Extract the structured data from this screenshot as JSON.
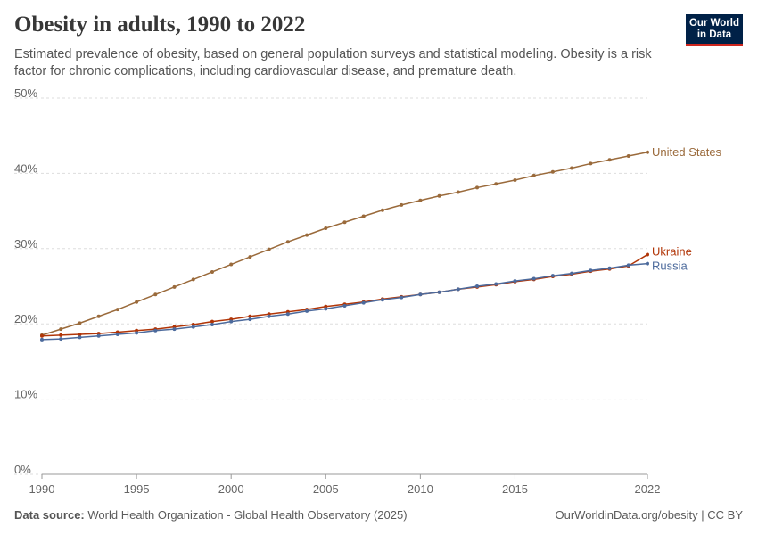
{
  "logo": {
    "line1": "Our World",
    "line2": "in Data"
  },
  "chart_data": {
    "type": "line",
    "title": "Obesity in adults, 1990 to 2022",
    "subtitle": "Estimated prevalence of obesity, based on general population surveys and statistical modeling. Obesity is a risk factor for chronic complications, including cardiovascular disease, and premature death.",
    "source_label": "Data source:",
    "source": "World Health Organization - Global Health Observatory (2025)",
    "url": "OurWorldinData.org/obesity | CC BY",
    "x": [
      1990,
      1991,
      1992,
      1993,
      1994,
      1995,
      1996,
      1997,
      1998,
      1999,
      2000,
      2001,
      2002,
      2003,
      2004,
      2005,
      2006,
      2007,
      2008,
      2009,
      2010,
      2011,
      2012,
      2013,
      2014,
      2015,
      2016,
      2017,
      2018,
      2019,
      2020,
      2021,
      2022
    ],
    "xlim": [
      1990,
      2022
    ],
    "xticks": [
      1990,
      1995,
      2000,
      2005,
      2010,
      2015,
      2022
    ],
    "ylim": [
      0,
      50
    ],
    "yticks": [
      {
        "value": 0,
        "label": "0%"
      },
      {
        "value": 10,
        "label": "10%"
      },
      {
        "value": 20,
        "label": "20%"
      },
      {
        "value": 30,
        "label": "30%"
      },
      {
        "value": 40,
        "label": "40%"
      },
      {
        "value": 50,
        "label": "50%"
      }
    ],
    "grid": true,
    "series": [
      {
        "name": "United States",
        "color": "#9a6a3b",
        "values": [
          18.5,
          19.3,
          20.1,
          21.0,
          21.9,
          22.9,
          23.9,
          24.9,
          25.9,
          26.9,
          27.9,
          28.9,
          29.9,
          30.9,
          31.8,
          32.7,
          33.5,
          34.3,
          35.1,
          35.8,
          36.4,
          37.0,
          37.5,
          38.1,
          38.6,
          39.1,
          39.7,
          40.2,
          40.7,
          41.3,
          41.8,
          42.3,
          42.8
        ]
      },
      {
        "name": "Ukraine",
        "color": "#b13507",
        "values": [
          18.4,
          18.5,
          18.6,
          18.7,
          18.9,
          19.1,
          19.3,
          19.6,
          19.9,
          20.3,
          20.6,
          21.0,
          21.3,
          21.6,
          21.9,
          22.3,
          22.6,
          22.9,
          23.3,
          23.6,
          23.9,
          24.2,
          24.6,
          24.9,
          25.2,
          25.6,
          25.9,
          26.3,
          26.6,
          27.0,
          27.3,
          27.7,
          29.2
        ]
      },
      {
        "name": "Russia",
        "color": "#4c6a9c",
        "values": [
          17.9,
          18.0,
          18.2,
          18.4,
          18.6,
          18.8,
          19.1,
          19.3,
          19.6,
          19.9,
          20.3,
          20.6,
          21.0,
          21.3,
          21.7,
          22.0,
          22.4,
          22.8,
          23.2,
          23.5,
          23.9,
          24.2,
          24.6,
          25.0,
          25.3,
          25.7,
          26.0,
          26.4,
          26.7,
          27.1,
          27.4,
          27.8,
          28.0
        ]
      }
    ]
  }
}
